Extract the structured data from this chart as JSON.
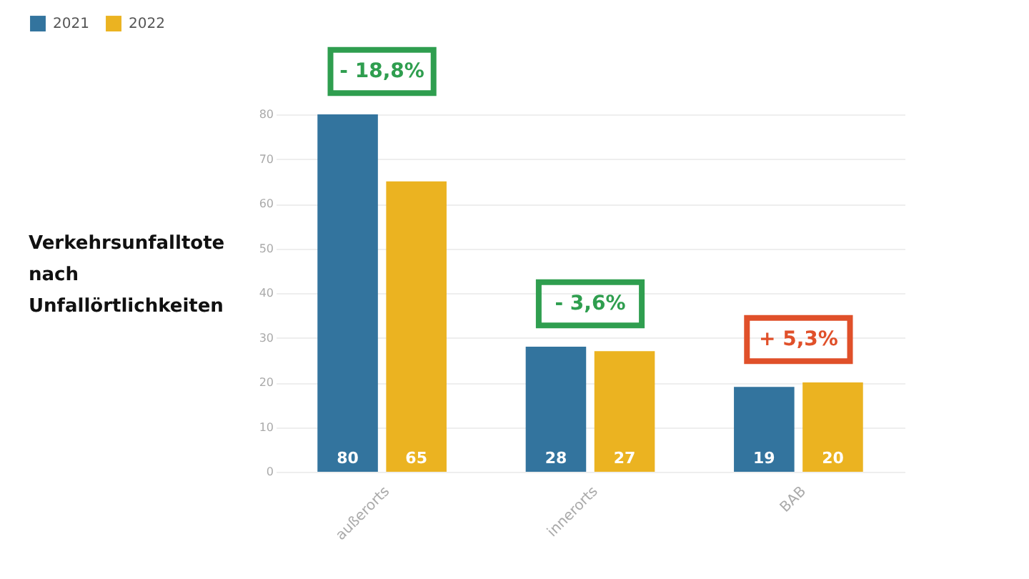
{
  "chart_data": {
    "type": "bar",
    "title": "Verkehrsunfalltote nach Unfallörtlichkeiten",
    "categories": [
      "außerorts",
      "innerorts",
      "BAB"
    ],
    "series": [
      {
        "name": "2021",
        "color": "#33749e",
        "values": [
          80,
          28,
          19
        ]
      },
      {
        "name": "2022",
        "color": "#ebb321",
        "values": [
          65,
          27,
          20
        ]
      }
    ],
    "ylim": [
      0,
      80
    ],
    "yticks": [
      0,
      10,
      20,
      30,
      40,
      50,
      60,
      70,
      80
    ],
    "grid": "y",
    "legend": "top left",
    "data_labels": true,
    "annotations": [
      {
        "text": "- 18,8%",
        "x": "außerorts",
        "y": 80
      },
      {
        "text": "- 3,6%",
        "x": "innerorts",
        "y": 28
      },
      {
        "text": "+ 5,3%",
        "x": "BAB",
        "y": 20
      }
    ]
  }
}
